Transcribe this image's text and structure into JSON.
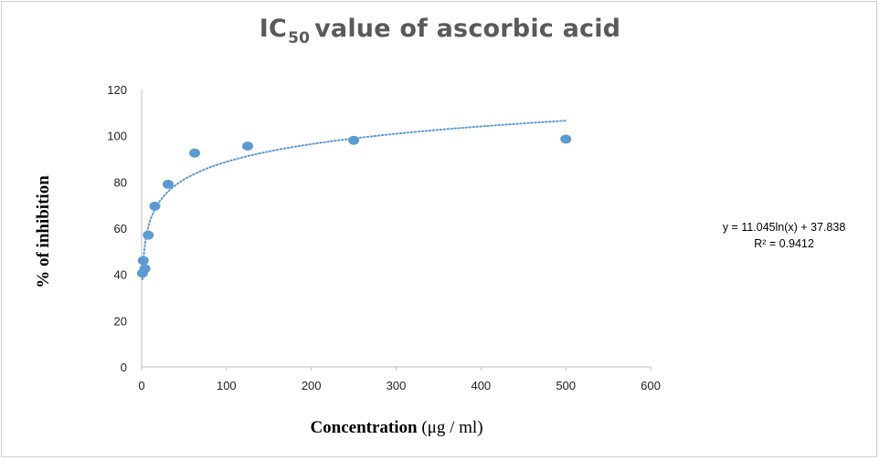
{
  "chart_data": {
    "type": "scatter",
    "title": {
      "main": "IC",
      "subscript": "50",
      "rest": "value of ascorbic acid"
    },
    "xlabel": {
      "bold": "Concentration",
      "unit": " (μg / ml)"
    },
    "ylabel": "% of inhibition",
    "xlim": [
      0,
      600
    ],
    "ylim": [
      0,
      120
    ],
    "x_ticks": [
      0,
      100,
      200,
      300,
      400,
      500,
      600
    ],
    "y_ticks": [
      0,
      20,
      40,
      60,
      80,
      100,
      120
    ],
    "grid": false,
    "points": [
      {
        "x": 0.98,
        "y": 40.5
      },
      {
        "x": 1.95,
        "y": 46.0
      },
      {
        "x": 3.9,
        "y": 42.5
      },
      {
        "x": 7.8,
        "y": 57.0
      },
      {
        "x": 15.6,
        "y": 69.5
      },
      {
        "x": 31.25,
        "y": 79.0
      },
      {
        "x": 62.5,
        "y": 92.5
      },
      {
        "x": 125,
        "y": 95.5
      },
      {
        "x": 250,
        "y": 98.0
      },
      {
        "x": 500,
        "y": 98.5
      }
    ],
    "trendline": {
      "type": "logarithmic",
      "a": 11.045,
      "b": 37.838,
      "x_range": [
        1,
        500
      ],
      "equation": "y = 11.045ln(x) + 37.838",
      "r_squared": "R² = 0.9412"
    },
    "colors": {
      "marker": "#5b9bd5",
      "trendline": "#5b9bd5",
      "axis": "#bfbfbf",
      "title": "#5a5a5a"
    }
  }
}
